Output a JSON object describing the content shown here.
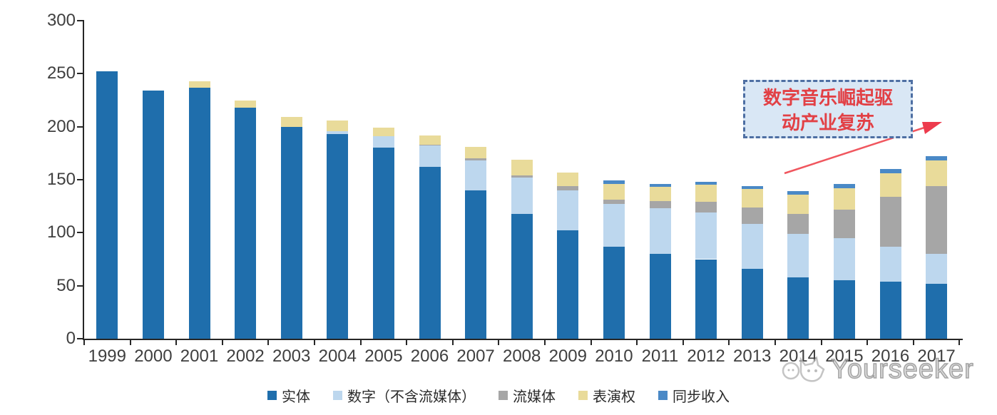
{
  "chart_data": {
    "type": "bar",
    "stacked": true,
    "title": "",
    "xlabel": "",
    "ylabel": "",
    "categories": [
      "1999",
      "2000",
      "2001",
      "2002",
      "2003",
      "2004",
      "2005",
      "2006",
      "2007",
      "2008",
      "2009",
      "2010",
      "2011",
      "2012",
      "2013",
      "2014",
      "2015",
      "2016",
      "2017"
    ],
    "series": [
      {
        "name": "实体",
        "color": "#1F6EAC",
        "values": [
          252,
          234,
          237,
          218,
          200,
          193,
          180,
          162,
          140,
          118,
          102,
          87,
          80,
          75,
          66,
          58,
          55,
          54,
          52
        ]
      },
      {
        "name": "数字（不含流媒体）",
        "color": "#BDD7EE",
        "values": [
          0,
          0,
          0,
          0,
          0,
          3,
          11,
          20,
          28,
          34,
          38,
          40,
          43,
          44,
          42,
          41,
          40,
          33,
          28
        ]
      },
      {
        "name": "流媒体",
        "color": "#A6A6A6",
        "values": [
          0,
          0,
          0,
          0,
          0,
          0,
          0,
          1,
          2,
          2,
          4,
          4,
          7,
          10,
          16,
          19,
          27,
          47,
          64
        ]
      },
      {
        "name": "表演权",
        "color": "#E9DB9A",
        "values": [
          0,
          0,
          6,
          7,
          9,
          10,
          8,
          9,
          11,
          15,
          13,
          15,
          13,
          16,
          17,
          18,
          20,
          22,
          24
        ]
      },
      {
        "name": "同步收入",
        "color": "#4A89C6",
        "values": [
          0,
          0,
          0,
          0,
          0,
          0,
          0,
          0,
          0,
          0,
          0,
          3,
          3,
          3,
          3,
          3,
          4,
          4,
          4
        ]
      }
    ],
    "ylim": [
      0,
      300
    ],
    "yticks": [
      0,
      50,
      100,
      150,
      200,
      250,
      300
    ],
    "grid": false,
    "legend_position": "bottom"
  },
  "annotation": {
    "line1": "数字音乐崛起驱",
    "line2": "动产业复苏",
    "text_color": "#E24045",
    "border_color": "#4e6fa3",
    "fill_color": "#D9E7F5",
    "arrow_color": "#F0565E"
  },
  "watermark": {
    "text": "Yourseeker"
  },
  "colors": {
    "axis": "#262626",
    "labels": "#3f3f3f"
  }
}
